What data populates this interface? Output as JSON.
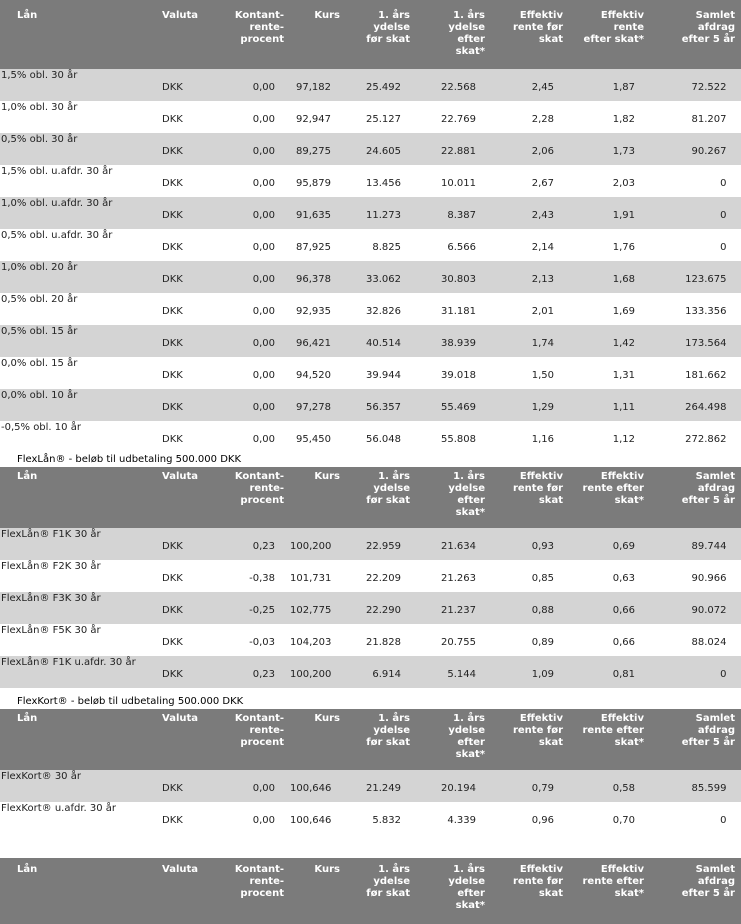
{
  "headers": [
    "Lån",
    "Valuta",
    "Kontant-rente-procent",
    "Kurs",
    "1. års ydelse før skat",
    "1. års ydelse efter skat*",
    "Effektiv rente før skat",
    "Effektiv rente efter skat*",
    "Samlet afdrag efter 5 år"
  ],
  "header_lines": [
    [
      "Lån"
    ],
    [
      "Valuta"
    ],
    [
      "Kontant-",
      "rente-",
      "procent"
    ],
    [
      "Kurs"
    ],
    [
      "1. års",
      "ydelse",
      "før skat"
    ],
    [
      "1. års",
      "ydelse",
      "efter",
      "skat*"
    ],
    [
      "Effektiv",
      "rente før",
      "skat"
    ],
    [
      "Effektiv",
      "rente",
      "efter skat*"
    ],
    [
      "Samlet",
      "afdrag",
      "efter 5 år"
    ]
  ],
  "header_lines_b": [
    [
      "Lån"
    ],
    [
      "Valuta"
    ],
    [
      "Kontant-",
      "rente-",
      "procent"
    ],
    [
      "Kurs"
    ],
    [
      "1. års",
      "ydelse",
      "før skat"
    ],
    [
      "1. års",
      "ydelse",
      "efter",
      "skat*"
    ],
    [
      "Effektiv",
      "rente før",
      "skat"
    ],
    [
      "Effektiv",
      "rente efter",
      "skat*"
    ],
    [
      "Samlet",
      "afdrag",
      "efter 5 år"
    ]
  ],
  "sections": [
    {
      "title": "",
      "rows": [
        [
          "1,5% obl. 30 år",
          "DKK",
          "0,00",
          "97,182",
          "25.492",
          "22.568",
          "2,45",
          "1,87",
          "72.522"
        ],
        [
          "1,0% obl. 30 år",
          "DKK",
          "0,00",
          "92,947",
          "25.127",
          "22.769",
          "2,28",
          "1,82",
          "81.207"
        ],
        [
          "0,5% obl. 30 år",
          "DKK",
          "0,00",
          "89,275",
          "24.605",
          "22.881",
          "2,06",
          "1,73",
          "90.267"
        ],
        [
          "1,5% obl. u.afdr. 30 år",
          "DKK",
          "0,00",
          "95,879",
          "13.456",
          "10.011",
          "2,67",
          "2,03",
          "0"
        ],
        [
          "1,0% obl. u.afdr. 30 år",
          "DKK",
          "0,00",
          "91,635",
          "11.273",
          "8.387",
          "2,43",
          "1,91",
          "0"
        ],
        [
          "0,5% obl. u.afdr. 30 år",
          "DKK",
          "0,00",
          "87,925",
          "8.825",
          "6.566",
          "2,14",
          "1,76",
          "0"
        ],
        [
          "1,0% obl. 20 år",
          "DKK",
          "0,00",
          "96,378",
          "33.062",
          "30.803",
          "2,13",
          "1,68",
          "123.675"
        ],
        [
          "0,5% obl. 20 år",
          "DKK",
          "0,00",
          "92,935",
          "32.826",
          "31.181",
          "2,01",
          "1,69",
          "133.356"
        ],
        [
          "0,5% obl. 15 år",
          "DKK",
          "0,00",
          "96,421",
          "40.514",
          "38.939",
          "1,74",
          "1,42",
          "173.564"
        ],
        [
          "0,0% obl. 15 år",
          "DKK",
          "0,00",
          "94,520",
          "39.944",
          "39.018",
          "1,50",
          "1,31",
          "181.662"
        ],
        [
          "0,0% obl. 10 år",
          "DKK",
          "0,00",
          "97,278",
          "56.357",
          "55.469",
          "1,29",
          "1,11",
          "264.498"
        ],
        [
          "-0,5% obl. 10 år",
          "DKK",
          "0,00",
          "95,450",
          "56.048",
          "55.808",
          "1,16",
          "1,12",
          "272.862"
        ]
      ]
    },
    {
      "title": "FlexLån® - beløb til udbetaling 500.000 DKK",
      "rows": [
        [
          "FlexLån® F1K 30 år",
          "DKK",
          "0,23",
          "100,200",
          "22.959",
          "21.634",
          "0,93",
          "0,69",
          "89.744"
        ],
        [
          "FlexLån® F2K 30 år",
          "DKK",
          "-0,38",
          "101,731",
          "22.209",
          "21.263",
          "0,85",
          "0,63",
          "90.966"
        ],
        [
          "FlexLån® F3K 30 år",
          "DKK",
          "-0,25",
          "102,775",
          "22.290",
          "21.237",
          "0,88",
          "0,66",
          "90.072"
        ],
        [
          "FlexLån® F5K 30 år",
          "DKK",
          "-0,03",
          "104,203",
          "21.828",
          "20.755",
          "0,89",
          "0,66",
          "88.024"
        ],
        [
          "FlexLån® F1K u.afdr. 30 år",
          "DKK",
          "0,23",
          "100,200",
          "6.914",
          "5.144",
          "1,09",
          "0,81",
          "0"
        ]
      ]
    },
    {
      "title": "FlexKort® - beløb til udbetaling 500.000 DKK",
      "rows": [
        [
          "FlexKort® 30 år",
          "DKK",
          "0,00",
          "100,646",
          "21.249",
          "20.194",
          "0,79",
          "0,58",
          "85.599"
        ],
        [
          "FlexKort® u.afdr. 30 år",
          "DKK",
          "0,00",
          "100,646",
          "5.832",
          "4.339",
          "0,96",
          "0,70",
          "0"
        ]
      ]
    }
  ]
}
